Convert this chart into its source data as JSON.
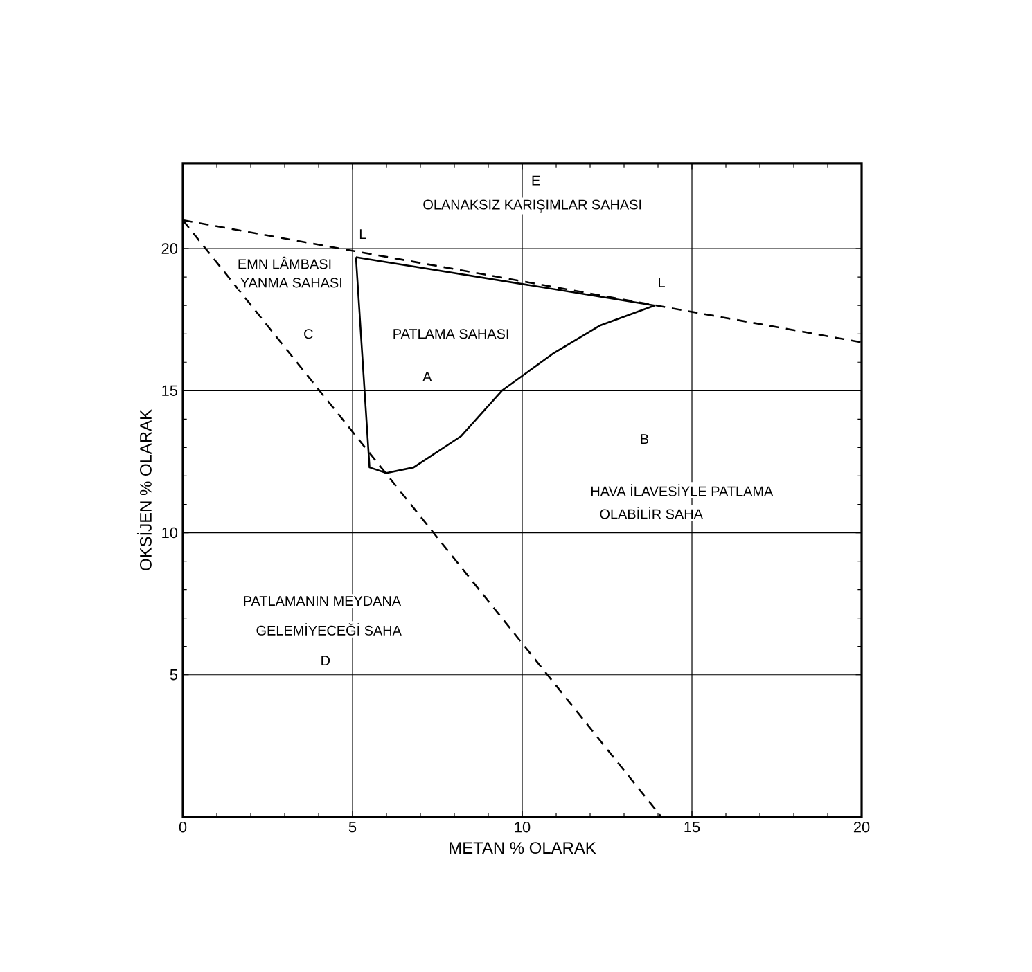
{
  "chart_data": {
    "type": "line",
    "xlabel": "METAN % OLARAK",
    "ylabel": "OKSİJEN % OLARAK",
    "xlim": [
      0,
      20
    ],
    "ylim": [
      0,
      23
    ],
    "xticks": [
      0,
      5,
      10,
      15,
      20
    ],
    "yticks": [
      5,
      10,
      15,
      20
    ],
    "grid": true,
    "series": [
      {
        "color": "#000000",
        "line_style": "dashed",
        "x": [
          0,
          20
        ],
        "values": [
          21.0,
          16.7
        ]
      },
      {
        "color": "#000000",
        "line_style": "dashed",
        "x": [
          0,
          14.1
        ],
        "values": [
          21.0,
          0
        ]
      },
      {
        "color": "#000000",
        "line_style": "solid",
        "x": [
          5.1,
          5.5,
          6.0,
          6.8,
          8.2,
          9.4,
          10.9,
          12.3,
          13.9
        ],
        "values": [
          19.7,
          12.3,
          12.1,
          12.3,
          13.4,
          15.0,
          16.3,
          17.3,
          18.0
        ]
      },
      {
        "color": "#000000",
        "line_style": "solid",
        "x": [
          5.1,
          13.9
        ],
        "values": [
          19.7,
          18.0
        ]
      }
    ],
    "annotations": [
      "E",
      "OLANAKSIZ KARIŞIMLAR SAHASI",
      {
        "text": "L",
        "x": 5.1,
        "y": 19.7
      },
      {
        "text": "L",
        "x": 13.9,
        "y": 18.0
      },
      "EMN LÂMBASI",
      "YANMA SAHASI",
      "C",
      "PATLAMA SAHASI",
      "A",
      "B",
      "HAVA İLAVESİYLE PATLAMA",
      "OLABİLİR SAHA",
      "PATLAMANIN MEYDANA",
      "GELEMİYECEĞİ SAHA",
      "D"
    ]
  }
}
